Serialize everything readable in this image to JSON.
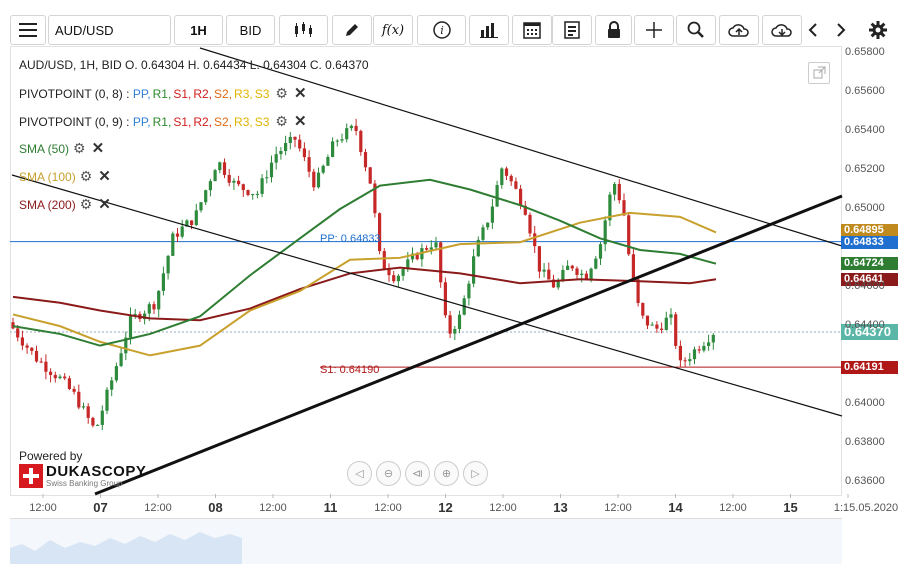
{
  "toolbar": {
    "symbol": "AUD/USD",
    "interval": "1H",
    "side": "BID",
    "icons": [
      "menu-icon",
      "candlestick-icon",
      "pencil-icon",
      "function-icon",
      "info-icon",
      "bar-chart-icon",
      "calendar-icon",
      "notes-icon",
      "lock-icon",
      "crosshair-icon",
      "zoom-icon",
      "upload-cloud-icon",
      "download-cloud-icon",
      "chevron-left-icon",
      "chevron-right-icon",
      "gear-icon"
    ],
    "function_label": "f(x)"
  },
  "legend": {
    "ohlc": "AUD/USD, 1H, BID   O. 0.64304 H. 0.64434 L. 0.64304 C. 0.64370",
    "pivot1": "PIVOTPOINT (0, 8)",
    "pivot2": "PIVOTPOINT (0, 9)",
    "pp_sep": ":",
    "pp_items": [
      {
        "label": "PP,",
        "color": "#2f7fd8"
      },
      {
        "label": "R1,",
        "color": "#2c8a2c"
      },
      {
        "label": "S1,",
        "color": "#d21e1e"
      },
      {
        "label": "R2,",
        "color": "#d21e1e"
      },
      {
        "label": "S2,",
        "color": "#e06a14"
      },
      {
        "label": "R3,",
        "color": "#e2b400"
      },
      {
        "label": "S3",
        "color": "#e2b400"
      }
    ],
    "sma50": "SMA (50)",
    "sma100": "SMA (100)",
    "sma200": "SMA (200)",
    "colors": {
      "sma50": "#2e7d32",
      "sma100": "#c8a02c",
      "sma200": "#8b1a1a"
    }
  },
  "annotations": {
    "pp_label": "PP: 0.64833",
    "s1_label": "S1: 0.64190"
  },
  "price_boxes": [
    {
      "value": "0.64895",
      "price": 0.64895,
      "color": "#c08a1e"
    },
    {
      "value": "0.64833",
      "price": 0.64833,
      "color": "#1e6fd0"
    },
    {
      "value": "0.64724",
      "price": 0.64724,
      "color": "#2e7d32"
    },
    {
      "value": "0.64641",
      "price": 0.64641,
      "color": "#8b1a1a"
    },
    {
      "value": "0.64370",
      "price": 0.6437,
      "color": "#5ab6a6",
      "big": true
    },
    {
      "value": "0.64191",
      "price": 0.64191,
      "color": "#b01818"
    }
  ],
  "y_axis": {
    "labels": [
      "0.65800",
      "0.65600",
      "0.65400",
      "0.65200",
      "0.65000",
      "0.64600",
      "0.64400",
      "0.64000",
      "0.63800",
      "0.63600"
    ],
    "values": [
      0.658,
      0.656,
      0.654,
      0.652,
      0.65,
      0.646,
      0.644,
      0.64,
      0.638,
      0.636
    ],
    "range": [
      0.6354,
      0.6583
    ]
  },
  "x_axis": [
    {
      "label": "12:00",
      "day": false
    },
    {
      "label": "07",
      "day": true
    },
    {
      "label": "12:00",
      "day": false
    },
    {
      "label": "08",
      "day": true
    },
    {
      "label": "12:00",
      "day": false
    },
    {
      "label": "11",
      "day": true
    },
    {
      "label": "12:00",
      "day": false
    },
    {
      "label": "12",
      "day": true
    },
    {
      "label": "12:00",
      "day": false
    },
    {
      "label": "13",
      "day": true
    },
    {
      "label": "12:00",
      "day": false
    },
    {
      "label": "14",
      "day": true
    },
    {
      "label": "12:00",
      "day": false
    },
    {
      "label": "15",
      "day": true
    },
    {
      "label": "1:15.05.2020",
      "day": false
    }
  ],
  "watermark": {
    "powered_by": "Powered by",
    "brand": "DUKASCOPY",
    "tagline": "Swiss Banking Group"
  },
  "chart_data": {
    "type": "candlestick",
    "symbol": "AUD/USD",
    "interval": "1H",
    "ylim": [
      0.6354,
      0.6583
    ],
    "pivot_pp": 0.64833,
    "pivot_s1": 0.6419,
    "last_close": 0.6437,
    "sma_last": {
      "sma50": 0.64724,
      "sma100": 0.64895,
      "sma200": 0.64641
    }
  }
}
